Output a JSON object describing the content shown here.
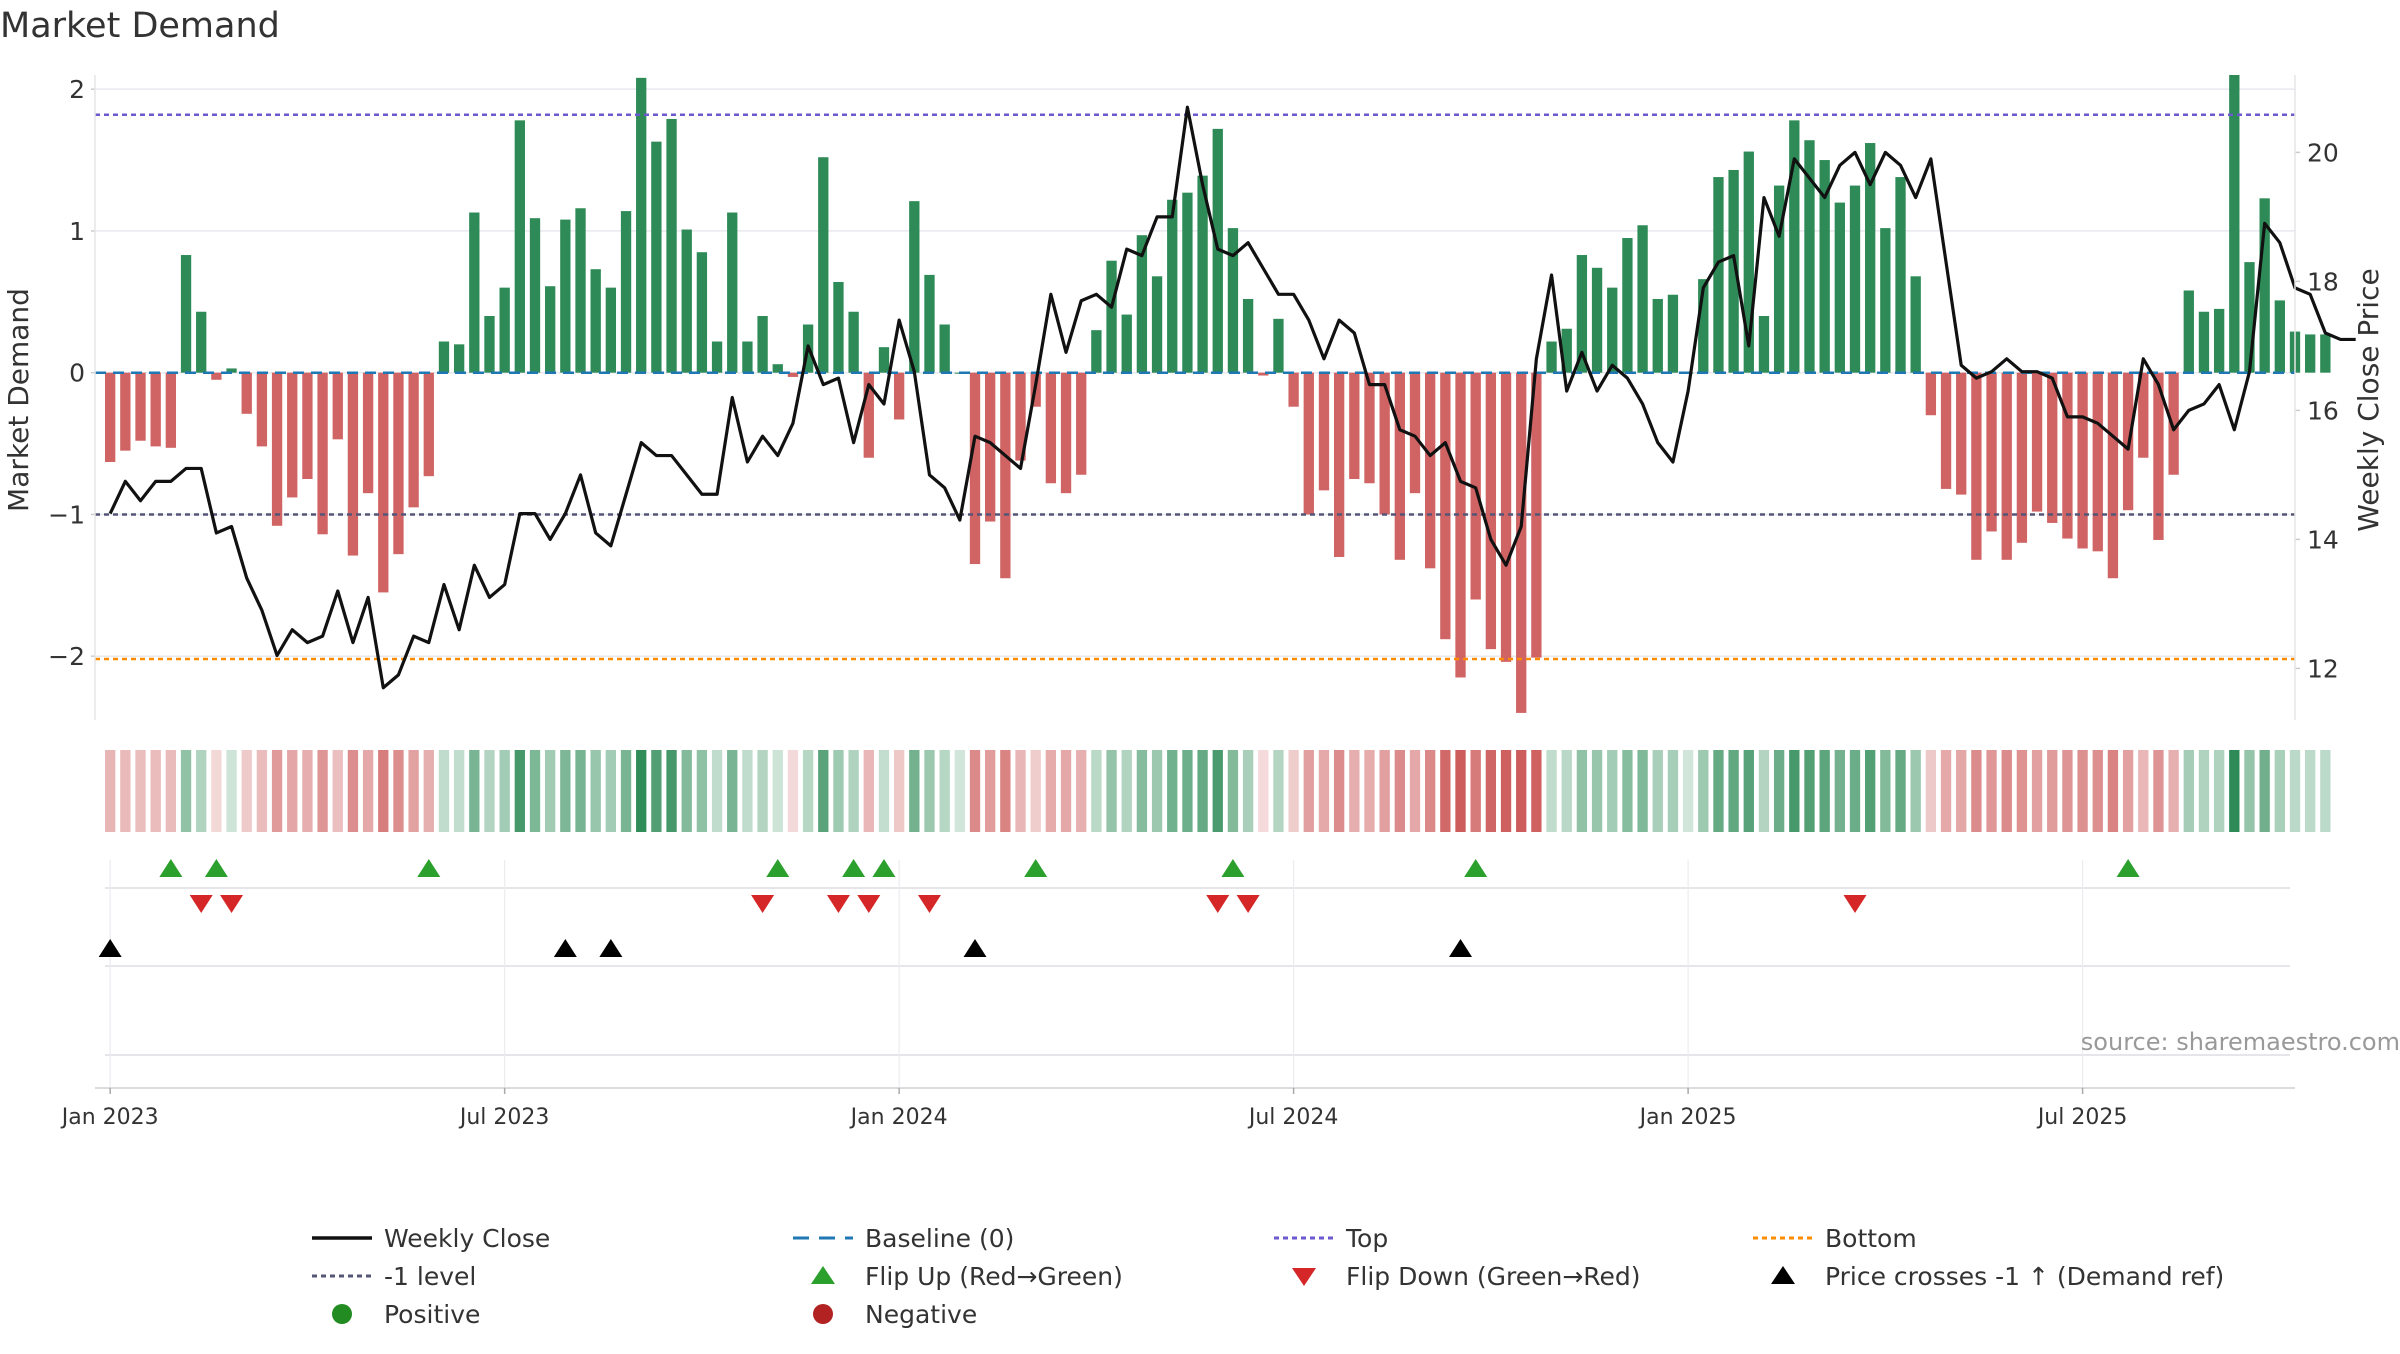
{
  "chart_data": {
    "type": "bar",
    "title": "Market Demand",
    "ylabel_left": "Market Demand",
    "ylabel_right": "Weekly Close Price",
    "ylim_left": [
      -2.45,
      2.1
    ],
    "ylim_right": [
      11.2,
      21.2
    ],
    "yticks_left": [
      2,
      1,
      0,
      -1,
      -2
    ],
    "ytick_labels_left": [
      "2",
      "1",
      "0",
      "−1",
      "−2"
    ],
    "yticks_right": [
      20,
      18,
      16,
      14,
      12
    ],
    "ytick_labels_right": [
      "20",
      "18",
      "16",
      "14",
      "12"
    ],
    "x_range_weeks": [
      -1,
      144
    ],
    "x_ticks": [
      {
        "week": 0,
        "label": "Jan 2023"
      },
      {
        "week": 26,
        "label": "Jul 2023"
      },
      {
        "week": 52,
        "label": "Jan 2024"
      },
      {
        "week": 78,
        "label": "Jul 2024"
      },
      {
        "week": 104,
        "label": "Jan 2025"
      },
      {
        "week": 130,
        "label": "Jul 2025"
      }
    ],
    "levels": {
      "top": 1.82,
      "minus_one": -1.0,
      "bottom": -2.02,
      "baseline": 0
    },
    "demand": [
      -0.63,
      -0.55,
      -0.48,
      -0.52,
      -0.53,
      0.83,
      0.43,
      -0.05,
      0.03,
      -0.29,
      -0.52,
      -1.08,
      -0.88,
      -0.75,
      -1.14,
      -0.47,
      -1.29,
      -0.85,
      -1.55,
      -1.28,
      -0.95,
      -0.73,
      0.22,
      0.2,
      1.13,
      0.4,
      0.6,
      1.78,
      1.09,
      0.61,
      1.08,
      1.16,
      0.73,
      0.6,
      1.14,
      2.08,
      1.63,
      1.79,
      1.01,
      0.85,
      0.22,
      1.13,
      0.22,
      0.4,
      0.06,
      -0.03,
      0.34,
      1.52,
      0.64,
      0.43,
      -0.6,
      0.18,
      -0.33,
      1.21,
      0.69,
      0.34,
      0.0,
      -1.35,
      -1.05,
      -1.45,
      -0.62,
      -0.24,
      -0.78,
      -0.85,
      -0.72,
      0.3,
      0.79,
      0.41,
      0.97,
      0.68,
      1.22,
      1.27,
      1.39,
      1.72,
      1.02,
      0.52,
      -0.02,
      0.38,
      -0.24,
      -1.0,
      -0.83,
      -1.3,
      -0.75,
      -0.78,
      -1.0,
      -1.32,
      -0.85,
      -1.38,
      -1.88,
      -2.15,
      -1.6,
      -1.95,
      -2.04,
      -2.4,
      -2.01,
      0.22,
      0.31,
      0.83,
      0.74,
      0.6,
      0.95,
      1.04,
      0.52,
      0.55,
      0.0,
      0.66,
      1.38,
      1.43,
      1.56,
      0.4,
      1.32,
      1.78,
      1.64,
      1.5,
      1.2,
      1.32,
      1.62,
      1.02,
      1.38,
      0.68,
      -0.3,
      -0.82,
      -0.86,
      -1.32,
      -1.12,
      -1.32,
      -1.2,
      -0.98,
      -1.06,
      -1.17,
      -1.24,
      -1.26,
      -1.45,
      -0.97,
      -0.6,
      -1.18,
      -0.72,
      0.58,
      0.43,
      0.45,
      2.1,
      0.78,
      1.23,
      0.51,
      0.29,
      0.27,
      0.27
    ],
    "weekly_close": [
      14.4,
      14.9,
      14.6,
      14.9,
      14.9,
      15.1,
      15.1,
      14.1,
      14.2,
      13.4,
      12.9,
      12.2,
      12.6,
      12.4,
      12.5,
      13.2,
      12.4,
      13.1,
      11.7,
      11.9,
      12.5,
      12.4,
      13.3,
      12.6,
      13.6,
      13.1,
      13.3,
      14.4,
      14.4,
      14.0,
      14.4,
      15.0,
      14.1,
      13.9,
      14.7,
      15.5,
      15.3,
      15.3,
      15.0,
      14.7,
      14.7,
      16.2,
      15.2,
      15.6,
      15.3,
      15.8,
      17.0,
      16.4,
      16.5,
      15.5,
      16.4,
      16.1,
      17.4,
      16.6,
      15.0,
      14.8,
      14.3,
      15.6,
      15.5,
      15.3,
      15.1,
      16.4,
      17.8,
      16.9,
      17.7,
      17.8,
      17.6,
      18.5,
      18.4,
      19.0,
      19.0,
      20.7,
      19.5,
      18.5,
      18.4,
      18.6,
      18.2,
      17.8,
      17.8,
      17.4,
      16.8,
      17.4,
      17.2,
      16.4,
      16.4,
      15.7,
      15.6,
      15.3,
      15.5,
      14.9,
      14.8,
      14.0,
      13.6,
      14.2,
      16.8,
      18.1,
      16.3,
      16.9,
      16.3,
      16.7,
      16.5,
      16.1,
      15.5,
      15.2,
      16.3,
      17.9,
      18.3,
      18.4,
      17.0,
      19.3,
      18.7,
      19.9,
      19.6,
      19.3,
      19.8,
      20.0,
      19.5,
      20.0,
      19.8,
      19.3,
      19.9,
      18.3,
      16.7,
      16.5,
      16.6,
      16.8,
      16.6,
      16.6,
      16.5,
      15.9,
      15.9,
      15.8,
      15.6,
      15.4,
      16.8,
      16.4,
      15.7,
      16.0,
      16.1,
      16.4,
      15.7,
      16.6,
      18.9,
      18.6,
      17.9,
      17.8,
      17.2,
      17.1,
      17.1
    ],
    "flip_up_weeks": [
      4,
      7,
      21,
      44,
      49,
      51,
      61,
      74,
      90,
      133
    ],
    "flip_down_weeks": [
      6,
      8,
      43,
      48,
      50,
      54,
      73,
      75,
      115
    ],
    "price_cross_weeks": [
      0,
      30,
      33,
      57,
      89
    ],
    "legend": [
      "Weekly Close",
      "Baseline (0)",
      "Top",
      "Bottom",
      "-1 level",
      "Flip Up (Red→Green)",
      "Flip Down (Green→Red)",
      "Price crosses -1 ↑ (Demand ref)",
      "Positive",
      "Negative"
    ],
    "source": "source: sharemaestro.com",
    "colors": {
      "positive": "#2e8b57",
      "negative": "#cd5c5c",
      "close_line": "#111111",
      "baseline": "#1f77b4",
      "top": "#6a5acd",
      "minus_one": "#555577",
      "bottom": "#ff8c00",
      "flip_up": "#2ca02c",
      "flip_down": "#d62728",
      "cross": "#000000",
      "positive_dot": "#228b22",
      "negative_dot": "#b22222"
    }
  }
}
